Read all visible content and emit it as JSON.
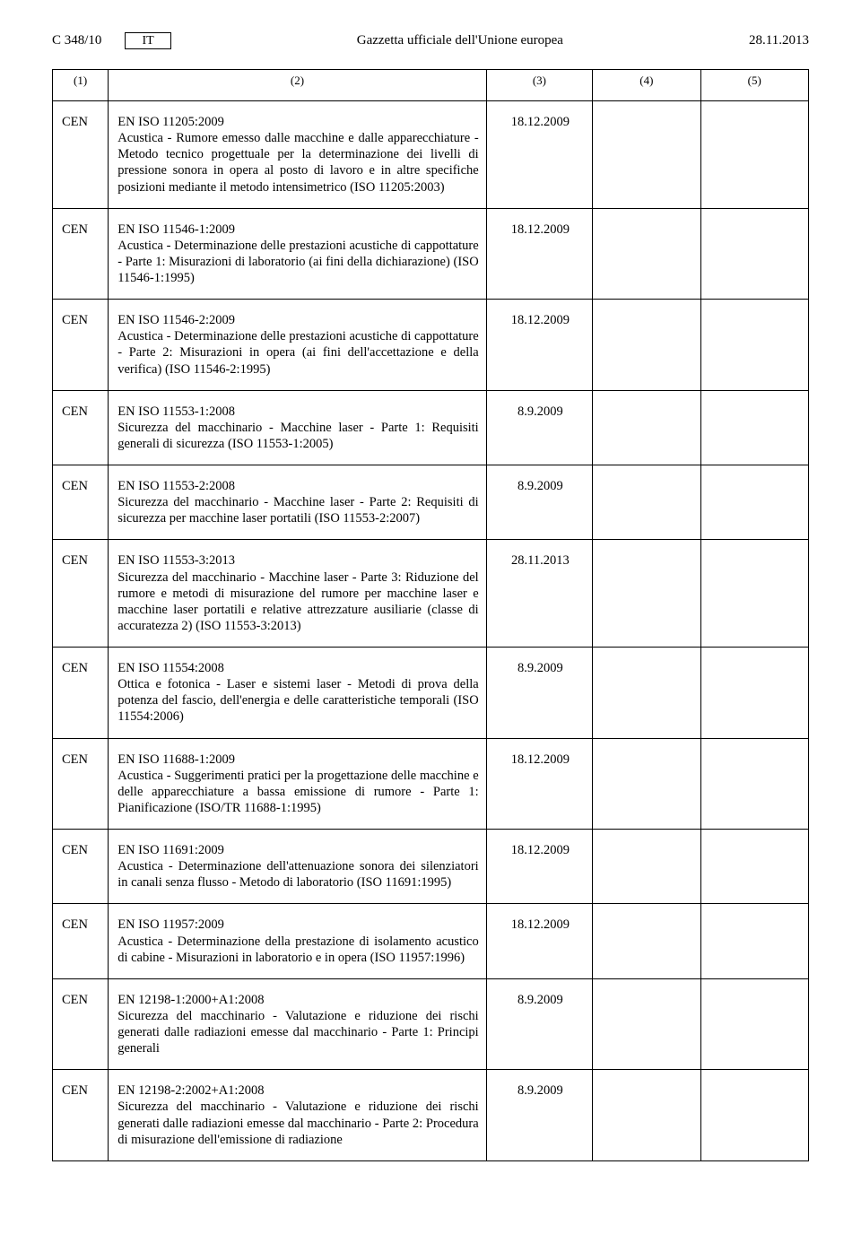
{
  "header": {
    "page_ref": "C 348/10",
    "lang": "IT",
    "journal": "Gazzetta ufficiale dell'Unione europea",
    "date": "28.11.2013"
  },
  "columns": [
    "(1)",
    "(2)",
    "(3)",
    "(4)",
    "(5)"
  ],
  "rows": [
    {
      "org": "CEN",
      "title": "EN ISO 11205:2009",
      "desc": "Acustica - Rumore emesso dalle macchine e dalle apparecchiature - Metodo tecnico progettuale per la determinazione dei livelli di pressione sonora in opera al posto di lavoro e in altre specifiche posizioni mediante il metodo intensimetrico (ISO 11205:2003)",
      "date": "18.12.2009"
    },
    {
      "org": "CEN",
      "title": "EN ISO 11546-1:2009",
      "desc": "Acustica - Determinazione delle prestazioni acustiche di cappottature - Parte 1: Misurazioni di laboratorio (ai fini della dichiarazione) (ISO 11546-1:1995)",
      "date": "18.12.2009"
    },
    {
      "org": "CEN",
      "title": "EN ISO 11546-2:2009",
      "desc": "Acustica - Determinazione delle prestazioni acustiche di cappottature - Parte 2: Misurazioni in opera (ai fini dell'accettazione e della verifica) (ISO 11546-2:1995)",
      "date": "18.12.2009"
    },
    {
      "org": "CEN",
      "title": "EN ISO 11553-1:2008",
      "desc": "Sicurezza del macchinario - Macchine laser - Parte 1: Requisiti generali di sicurezza (ISO 11553-1:2005)",
      "date": "8.9.2009"
    },
    {
      "org": "CEN",
      "title": "EN ISO 11553-2:2008",
      "desc": "Sicurezza del macchinario - Macchine laser - Parte 2: Requisiti di sicurezza per macchine laser portatili (ISO 11553-2:2007)",
      "date": "8.9.2009"
    },
    {
      "org": "CEN",
      "title": "EN ISO 11553-3:2013",
      "desc": "Sicurezza del macchinario - Macchine laser - Parte 3: Riduzione del rumore e metodi di misurazione del rumore per macchine laser e macchine laser portatili e relative attrezzature ausiliarie (classe di accuratezza 2) (ISO 11553-3:2013)",
      "date": "28.11.2013"
    },
    {
      "org": "CEN",
      "title": "EN ISO 11554:2008",
      "desc": "Ottica e fotonica - Laser e sistemi laser - Metodi di prova della potenza del fascio, dell'energia e delle caratteristiche temporali (ISO 11554:2006)",
      "date": "8.9.2009"
    },
    {
      "org": "CEN",
      "title": "EN ISO 11688-1:2009",
      "desc": "Acustica - Suggerimenti pratici per la progettazione delle macchine e delle apparecchiature a bassa emissione di rumore - Parte 1: Pianificazione (ISO/TR 11688-1:1995)",
      "date": "18.12.2009"
    },
    {
      "org": "CEN",
      "title": "EN ISO 11691:2009",
      "desc": "Acustica - Determinazione dell'attenuazione sonora dei silenziatori in canali senza flusso - Metodo di laboratorio (ISO 11691:1995)",
      "date": "18.12.2009"
    },
    {
      "org": "CEN",
      "title": "EN ISO 11957:2009",
      "desc": "Acustica - Determinazione della prestazione di isolamento acustico di cabine - Misurazioni in laboratorio e in opera (ISO 11957:1996)",
      "date": "18.12.2009"
    },
    {
      "org": "CEN",
      "title": "EN 12198-1:2000+A1:2008",
      "desc": "Sicurezza del macchinario - Valutazione e riduzione dei rischi generati dalle radiazioni emesse dal macchinario - Parte 1: Principi generali",
      "date": "8.9.2009"
    },
    {
      "org": "CEN",
      "title": "EN 12198-2:2002+A1:2008",
      "desc": "Sicurezza del macchinario - Valutazione e riduzione dei rischi generati dalle radiazioni emesse dal macchinario - Parte 2: Procedura di misurazione dell'emissione di radiazione",
      "date": "8.9.2009"
    }
  ]
}
